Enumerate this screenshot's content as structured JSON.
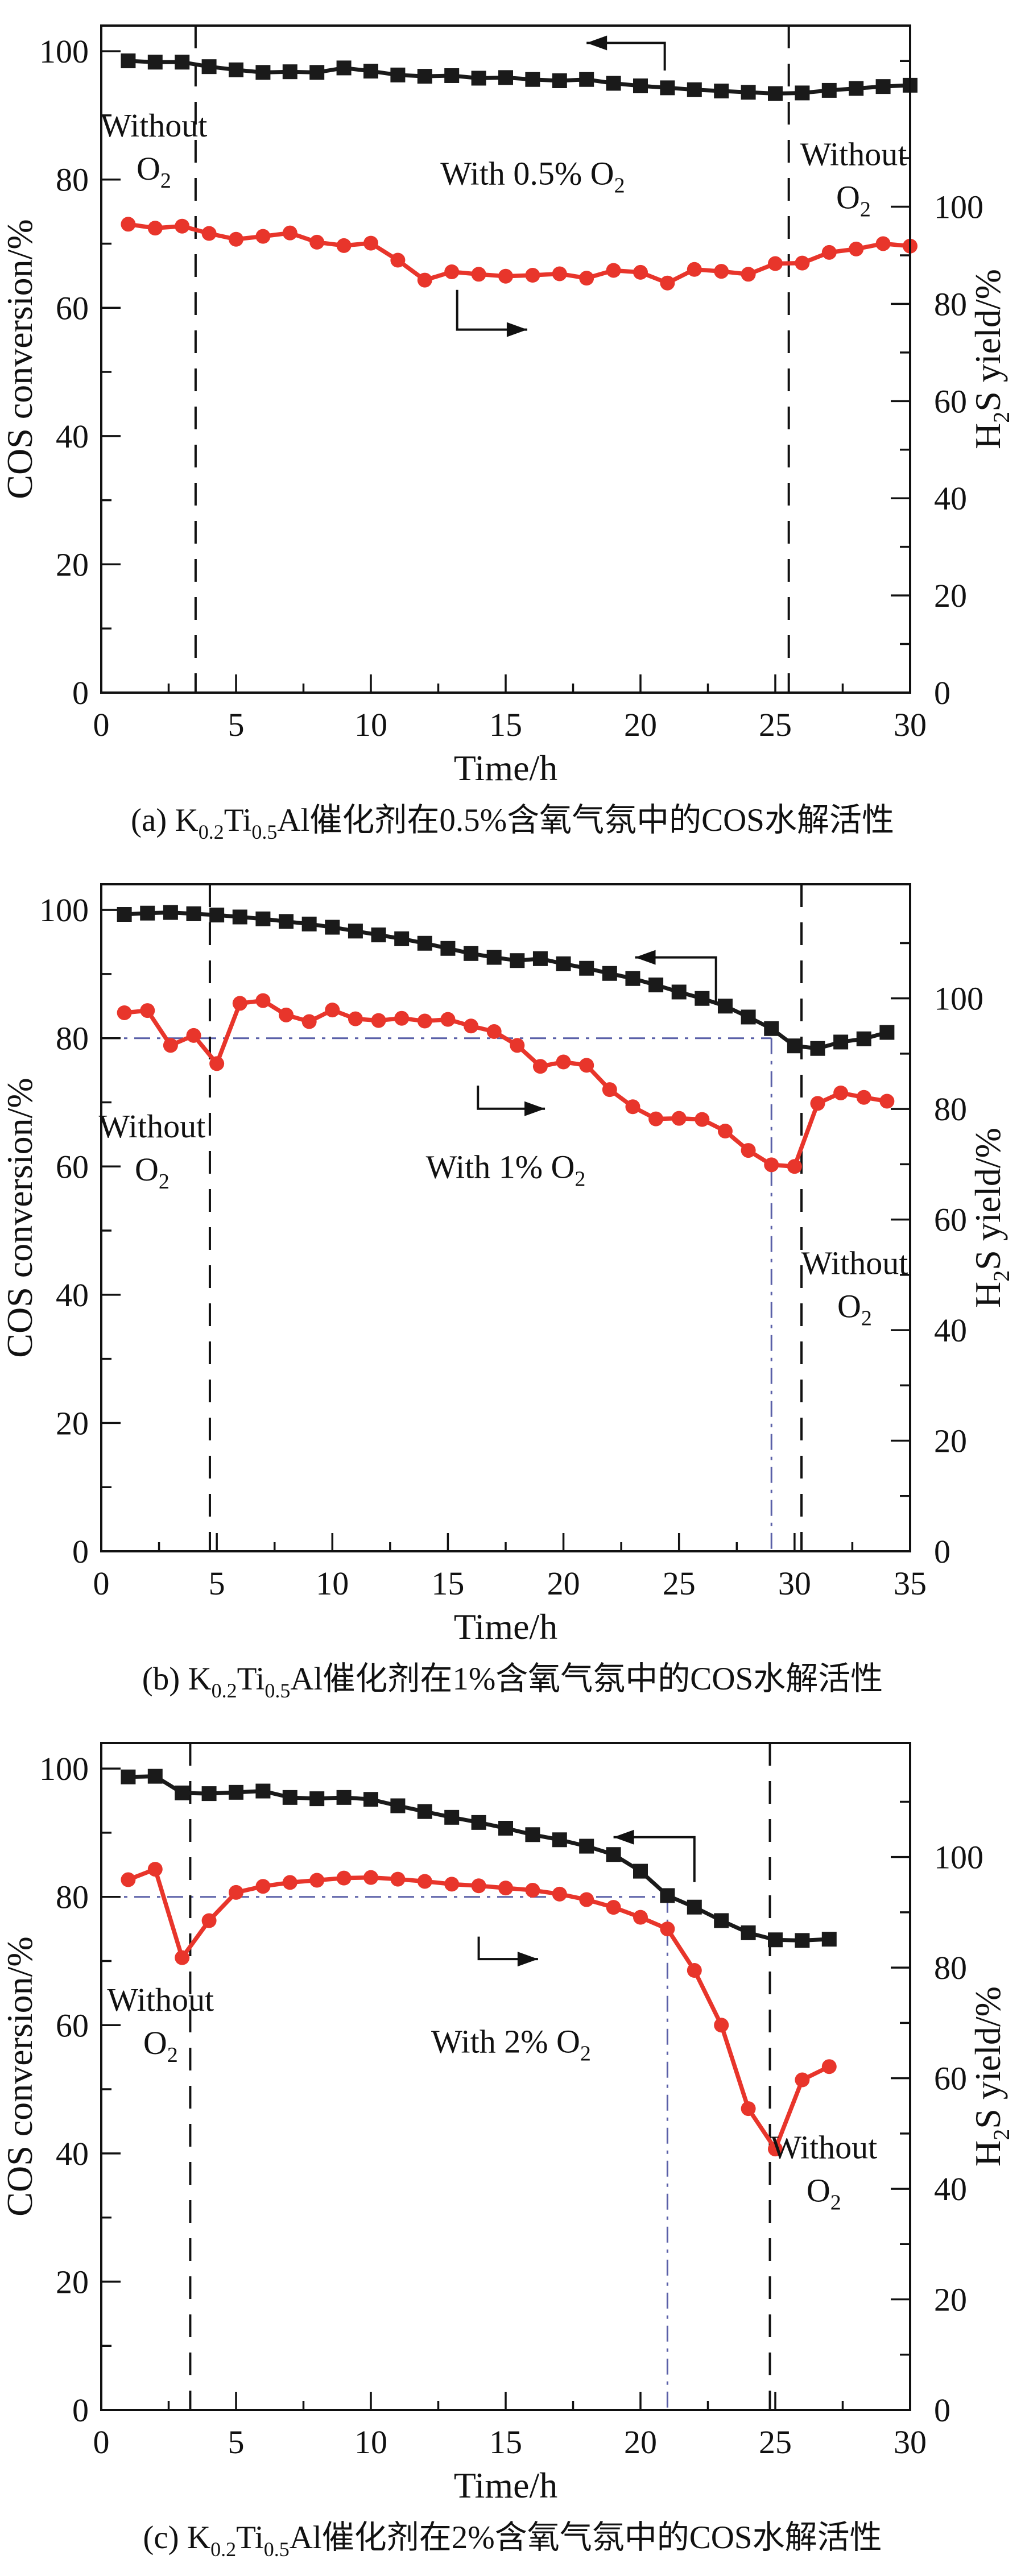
{
  "page": {
    "background": "#ffffff"
  },
  "colors": {
    "conversion_series": "#1a1a1a",
    "yield_series": "#e8352b",
    "guide_blue": "#5a60a8",
    "axis": "#111111"
  },
  "chart_data": [
    {
      "id": "a",
      "type": "line",
      "xlabel": "Time/h",
      "ylabel_left": "COS conversion/%",
      "ylabel_right": {
        "pre": "H",
        "sub": "2",
        "post": "S yield/%"
      },
      "caption": {
        "p0": "(a) K",
        "s0": "0.2",
        "p1": "Ti",
        "s1": "0.5",
        "p2": "Al催化剂在0.5%含氧气氛中的COS水解活性"
      },
      "axes": {
        "x_max": 30,
        "x_ticks": [
          0,
          5,
          10,
          15,
          20,
          25,
          30
        ],
        "x_minor_step": 2.5,
        "left_ticks": [
          100,
          80,
          60,
          40,
          20,
          0
        ],
        "left_minor_step": 10,
        "left_top": 104,
        "right_ticks": [
          100,
          80,
          60,
          40,
          20,
          0
        ],
        "right_minor_step": 10,
        "right_ratio": 1.32,
        "grid": false
      },
      "guides": {
        "dashed_x": [
          3.5,
          25.5
        ],
        "blue": null
      },
      "series": [
        {
          "name": "COS conversion",
          "axis": "left",
          "marker": "square",
          "color": "#1a1a1a",
          "x": [
            1,
            2,
            3,
            4,
            5,
            6,
            7,
            8,
            9,
            10,
            11,
            12,
            13,
            14,
            15,
            16,
            17,
            18,
            19,
            20,
            21,
            22,
            23,
            24,
            25,
            26,
            27,
            28,
            29,
            30
          ],
          "y": [
            98.5,
            98.3,
            98.3,
            97.6,
            97.1,
            96.7,
            96.8,
            96.7,
            97.4,
            96.9,
            96.3,
            96.1,
            96.2,
            95.8,
            95.9,
            95.6,
            95.4,
            95.6,
            95.0,
            94.6,
            94.3,
            94.0,
            93.8,
            93.6,
            93.4,
            93.5,
            93.9,
            94.2,
            94.5,
            94.7
          ]
        },
        {
          "name": "H2S yield",
          "axis": "right",
          "marker": "circle",
          "color": "#e8352b",
          "x": [
            1,
            2,
            3,
            4,
            5,
            6,
            7,
            8,
            9,
            10,
            11,
            12,
            13,
            14,
            15,
            16,
            17,
            18,
            19,
            20,
            21,
            22,
            23,
            24,
            25,
            26,
            27,
            28,
            29,
            30
          ],
          "y": [
            96.4,
            95.6,
            96.0,
            94.5,
            93.3,
            93.9,
            94.6,
            92.7,
            92.0,
            92.5,
            89.0,
            84.9,
            86.6,
            86.1,
            85.7,
            85.9,
            86.2,
            85.3,
            86.9,
            86.5,
            84.3,
            87.1,
            86.7,
            86.1,
            88.3,
            88.4,
            90.6,
            91.3,
            92.4,
            91.9
          ]
        }
      ],
      "annotations": [
        {
          "x": 1.95,
          "y": 88.5,
          "lines": [
            {
              "pre": "Without",
              "sub": ""
            },
            {
              "pre": "O",
              "sub": "2"
            }
          ]
        },
        {
          "x": 16.0,
          "y": 81.0,
          "lines": [
            {
              "pre": "With 0.5% O",
              "sub": "2"
            }
          ]
        },
        {
          "x": 27.9,
          "y": 84.0,
          "lines": [
            {
              "pre": "Without",
              "sub": ""
            },
            {
              "pre": "O",
              "sub": "2"
            }
          ]
        }
      ],
      "arrows": [
        {
          "dir": "left",
          "tip": [
            18.0,
            101.3
          ],
          "corner": [
            20.9,
            101.3
          ],
          "leg": [
            20.9,
            97.0
          ]
        },
        {
          "dir": "right",
          "tip": [
            15.8,
            56.6
          ],
          "corner": [
            13.2,
            56.6
          ],
          "leg": [
            13.2,
            62.8
          ]
        }
      ]
    },
    {
      "id": "b",
      "type": "line",
      "xlabel": "Time/h",
      "ylabel_left": "COS conversion/%",
      "ylabel_right": {
        "pre": "H",
        "sub": "2",
        "post": "S yield/%"
      },
      "caption": {
        "p0": "(b) K",
        "s0": "0.2",
        "p1": "Ti",
        "s1": "0.5",
        "p2": "Al催化剂在1%含氧气氛中的COS水解活性"
      },
      "axes": {
        "x_max": 35,
        "x_ticks": [
          0,
          5,
          10,
          15,
          20,
          25,
          30,
          35
        ],
        "x_minor_step": 2.5,
        "left_ticks": [
          100,
          80,
          60,
          40,
          20,
          0
        ],
        "left_minor_step": 10,
        "left_top": 104,
        "right_ticks": [
          100,
          80,
          60,
          40,
          20,
          0
        ],
        "right_minor_step": 10,
        "right_ratio": 1.16,
        "grid": false
      },
      "guides": {
        "dashed_x": [
          4.7,
          30.3
        ],
        "blue": {
          "y": 80,
          "x_end": 29
        }
      },
      "series": [
        {
          "name": "COS conversion",
          "axis": "left",
          "marker": "square",
          "color": "#1a1a1a",
          "x": [
            1,
            2,
            3,
            4,
            5,
            6,
            7,
            8,
            9,
            10,
            11,
            12,
            13,
            14,
            15,
            16,
            17,
            18,
            19,
            20,
            21,
            22,
            23,
            24,
            25,
            26,
            27,
            28,
            29,
            30,
            31,
            32,
            33,
            34
          ],
          "y": [
            99.3,
            99.5,
            99.6,
            99.4,
            99.2,
            98.9,
            98.6,
            98.2,
            97.8,
            97.3,
            96.7,
            96.1,
            95.5,
            94.8,
            94.0,
            93.2,
            92.6,
            92.1,
            92.4,
            91.6,
            90.9,
            90.1,
            89.3,
            88.3,
            87.2,
            86.2,
            85.0,
            83.3,
            81.5,
            78.8,
            78.4,
            79.4,
            79.9,
            80.9
          ]
        },
        {
          "name": "H2S yield",
          "axis": "right",
          "marker": "circle",
          "color": "#e8352b",
          "x": [
            1,
            2,
            3,
            4,
            5,
            6,
            7,
            8,
            9,
            10,
            11,
            12,
            13,
            14,
            15,
            16,
            17,
            18,
            19,
            20,
            21,
            22,
            23,
            24,
            25,
            26,
            27,
            28,
            29,
            30,
            31,
            32,
            33,
            34
          ],
          "y": [
            97.4,
            97.8,
            91.5,
            93.3,
            88.2,
            99.1,
            99.6,
            97.0,
            95.8,
            97.9,
            96.3,
            96.0,
            96.4,
            95.9,
            96.2,
            95.0,
            94.0,
            91.5,
            87.7,
            88.5,
            87.9,
            83.5,
            80.4,
            78.2,
            78.3,
            78.1,
            76.0,
            72.5,
            69.9,
            69.6,
            81.0,
            82.9,
            82.1,
            81.4
          ]
        }
      ],
      "annotations": [
        {
          "x": 2.2,
          "y": 66.3,
          "lines": [
            {
              "pre": "Without",
              "sub": ""
            },
            {
              "pre": "O",
              "sub": "2"
            }
          ]
        },
        {
          "x": 17.5,
          "y": 60.0,
          "lines": [
            {
              "pre": "With 1% O",
              "sub": "2"
            }
          ]
        },
        {
          "x": 32.6,
          "y": 45.0,
          "lines": [
            {
              "pre": "Without",
              "sub": ""
            },
            {
              "pre": "O",
              "sub": "2"
            }
          ]
        }
      ],
      "arrows": [
        {
          "dir": "left",
          "tip": [
            23.1,
            92.6
          ],
          "corner": [
            26.6,
            92.6
          ],
          "leg": [
            26.6,
            85.6
          ]
        },
        {
          "dir": "right",
          "tip": [
            19.2,
            69.0
          ],
          "corner": [
            16.3,
            69.0
          ],
          "leg": [
            16.3,
            72.6
          ]
        }
      ]
    },
    {
      "id": "c",
      "type": "line",
      "xlabel": "Time/h",
      "ylabel_left": "COS conversion/%",
      "ylabel_right": {
        "pre": "H",
        "sub": "2",
        "post": "S yield/%"
      },
      "caption": {
        "p0": "(c) K",
        "s0": "0.2",
        "p1": "Ti",
        "s1": "0.5",
        "p2": "Al催化剂在2%含氧气氛中的COS水解活性"
      },
      "axes": {
        "x_max": 30,
        "x_ticks": [
          0,
          5,
          10,
          15,
          20,
          25,
          30
        ],
        "x_minor_step": 2.5,
        "left_ticks": [
          100,
          80,
          60,
          40,
          20,
          0
        ],
        "left_minor_step": 10,
        "left_top": 104,
        "right_ticks": [
          100,
          80,
          60,
          40,
          20,
          0
        ],
        "right_minor_step": 10,
        "right_ratio": 1.16,
        "grid": false
      },
      "guides": {
        "dashed_x": [
          3.3,
          24.8
        ],
        "blue": {
          "y": 80,
          "x_end": 21
        }
      },
      "series": [
        {
          "name": "COS conversion",
          "axis": "left",
          "marker": "square",
          "color": "#1a1a1a",
          "x": [
            1,
            2,
            3,
            4,
            5,
            6,
            7,
            8,
            9,
            10,
            11,
            12,
            13,
            14,
            15,
            16,
            17,
            18,
            19,
            20,
            21,
            22,
            23,
            24,
            25,
            26,
            27
          ],
          "y": [
            98.7,
            98.8,
            96.2,
            96.1,
            96.3,
            96.5,
            95.5,
            95.3,
            95.5,
            95.2,
            94.2,
            93.3,
            92.4,
            91.6,
            90.7,
            89.7,
            88.9,
            87.9,
            86.6,
            84.0,
            80.2,
            78.4,
            76.3,
            74.4,
            73.3,
            73.2,
            73.4
          ]
        },
        {
          "name": "H2S yield",
          "axis": "right",
          "marker": "circle",
          "color": "#e8352b",
          "x": [
            1,
            2,
            3,
            4,
            5,
            6,
            7,
            8,
            9,
            10,
            11,
            12,
            13,
            14,
            15,
            16,
            17,
            18,
            19,
            20,
            21,
            22,
            23,
            24,
            25,
            26,
            27
          ],
          "y": [
            95.9,
            97.8,
            81.8,
            88.5,
            93.6,
            94.7,
            95.4,
            95.8,
            96.2,
            96.3,
            96.0,
            95.6,
            95.1,
            94.8,
            94.4,
            94.0,
            93.3,
            92.3,
            90.9,
            89.1,
            87.0,
            79.5,
            69.6,
            54.5,
            47.2,
            59.7,
            62.1
          ]
        }
      ],
      "annotations": [
        {
          "x": 2.2,
          "y": 64.0,
          "lines": [
            {
              "pre": "Without",
              "sub": ""
            },
            {
              "pre": "O",
              "sub": "2"
            }
          ]
        },
        {
          "x": 15.2,
          "y": 57.5,
          "lines": [
            {
              "pre": "With 2% O",
              "sub": "2"
            }
          ]
        },
        {
          "x": 26.8,
          "y": 41.0,
          "lines": [
            {
              "pre": "Without",
              "sub": ""
            },
            {
              "pre": "O",
              "sub": "2"
            }
          ]
        }
      ],
      "arrows": [
        {
          "dir": "left",
          "tip": [
            19.0,
            89.3
          ],
          "corner": [
            22.0,
            89.3
          ],
          "leg": [
            22.0,
            82.3
          ]
        },
        {
          "dir": "right",
          "tip": [
            16.2,
            70.3
          ],
          "corner": [
            14.0,
            70.3
          ],
          "leg": [
            14.0,
            73.8
          ]
        }
      ]
    }
  ]
}
